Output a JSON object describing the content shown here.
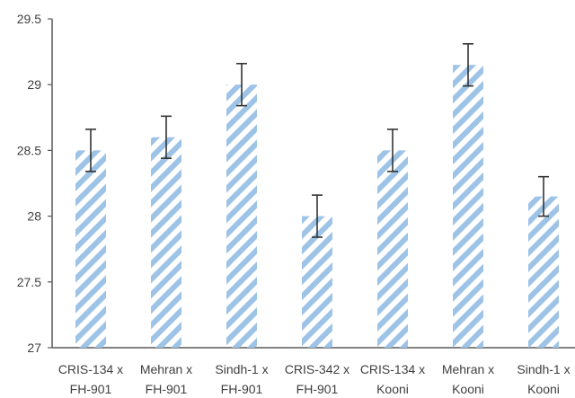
{
  "chart_data": {
    "type": "bar",
    "title": "",
    "xlabel": "",
    "ylabel": "",
    "ylim": [
      27,
      29.5
    ],
    "yticks": [
      27,
      27.5,
      28,
      28.5,
      29,
      29.5
    ],
    "ytick_labels": [
      "27",
      "27.5",
      "28",
      "28.5",
      "29",
      "29.5"
    ],
    "grid": false,
    "categories": [
      [
        "CRIS-134 x",
        "FH-901"
      ],
      [
        "Mehran x",
        "FH-901"
      ],
      [
        "Sindh-1 x",
        "FH-901"
      ],
      [
        "CRIS-342 x",
        "FH-901"
      ],
      [
        "CRIS-134 x",
        "Kooni"
      ],
      [
        "Mehran x",
        "Kooni"
      ],
      [
        "Sindh-1 x",
        "Kooni"
      ]
    ],
    "values": [
      28.5,
      28.6,
      29.0,
      28.0,
      28.5,
      29.15,
      28.15
    ],
    "error": [
      0.16,
      0.16,
      0.16,
      0.16,
      0.16,
      0.16,
      0.15
    ],
    "bar_fill": "diagonal-hatch",
    "bar_color": "#9dc3e6",
    "errorbar_color": "#333333",
    "axis_color": "#595959"
  }
}
